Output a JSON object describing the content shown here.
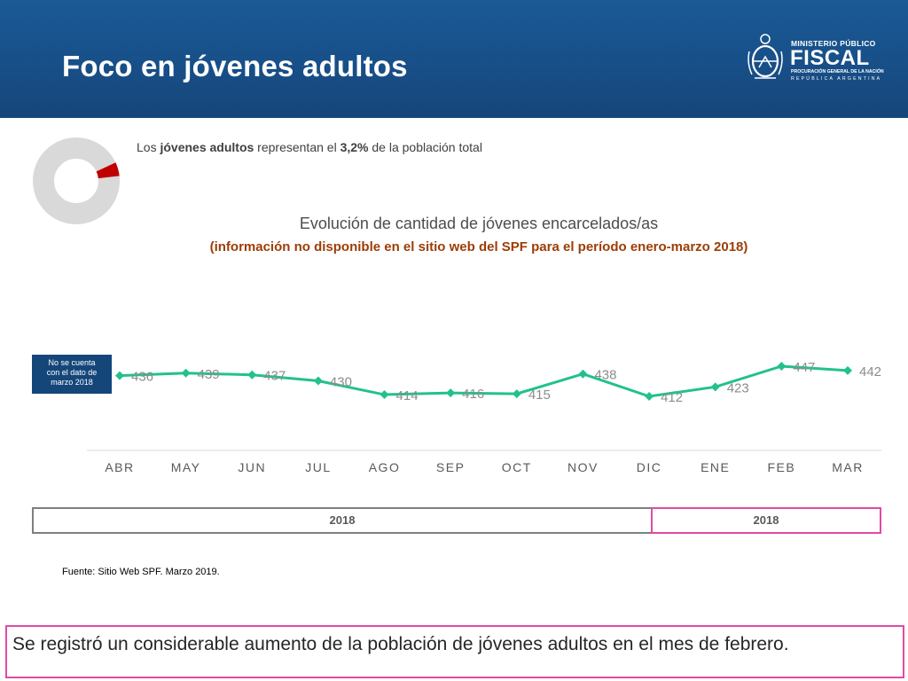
{
  "header": {
    "title": "Foco en jóvenes adultos",
    "logo": {
      "line1": "MINISTERIO PÚBLICO",
      "line2": "FISCAL",
      "line3": "PROCURACIÓN GENERAL DE LA NACIÓN",
      "line4": "REPÚBLICA ARGENTINA",
      "icon": "coat-of-arms-icon"
    }
  },
  "intro": {
    "prefix": "Los ",
    "bold1": "jóvenes adultos",
    "middle": " representan el ",
    "bold2": "3,2%",
    "suffix": " de la población total"
  },
  "donut": {
    "share_percent": 3.2,
    "main_color": "#d9d9d9",
    "highlight_color": "#c00000"
  },
  "note": {
    "line1": "No se cuenta",
    "line2": "con el dato de",
    "line3": "marzo 2018"
  },
  "chart_data": {
    "type": "line",
    "title": "Evolución de cantidad de jóvenes encarcelados/as",
    "subtitle": "(información no disponible en el sitio web del SPF para el período enero-marzo 2018)",
    "categories": [
      "ABR",
      "MAY",
      "JUN",
      "JUL",
      "AGO",
      "SEP",
      "OCT",
      "NOV",
      "DIC",
      "ENE",
      "FEB",
      "MAR"
    ],
    "series": [
      {
        "values": [
          436,
          439,
          437,
          430,
          414,
          416,
          415,
          438,
          412,
          423,
          447,
          442
        ],
        "color": "#22c18f"
      }
    ],
    "data_labels": [
      "436",
      "439",
      "437",
      "430",
      "414",
      "416",
      "415",
      "438",
      "412",
      "423",
      "447",
      "442"
    ],
    "ylim": [
      380,
      460
    ],
    "grid": false,
    "xlabel": "",
    "ylabel": ""
  },
  "years": {
    "first": "2018",
    "second": "2018"
  },
  "source": "Fuente: Sitio Web SPF. Marzo 2019.",
  "conclusion": "Se registró un considerable aumento de la población de jóvenes adultos en el mes de febrero."
}
